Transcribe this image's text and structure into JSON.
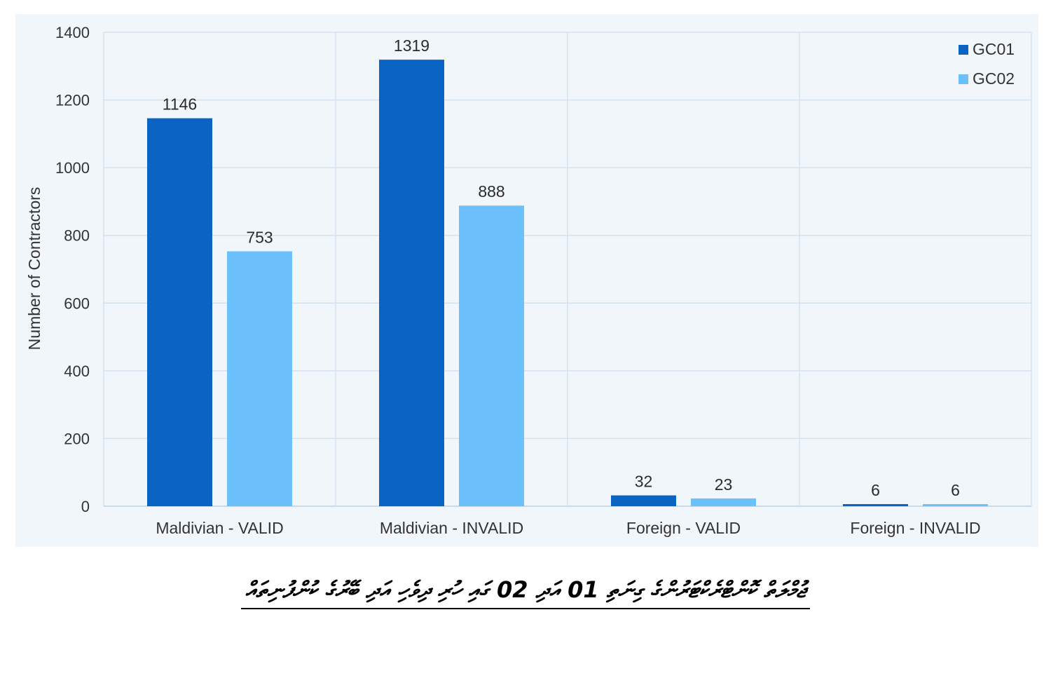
{
  "chart_data": {
    "type": "bar",
    "categories": [
      "Maldivian - VALID",
      "Maldivian - INVALID",
      "Foreign - VALID",
      "Foreign - INVALID"
    ],
    "series": [
      {
        "name": "GC01",
        "values": [
          1146,
          1319,
          32,
          6
        ],
        "color": "#0a64c4"
      },
      {
        "name": "GC02",
        "values": [
          753,
          888,
          23,
          6
        ],
        "color": "#6cc0fb"
      }
    ],
    "ylabel": "Number of Contractors",
    "ylim": [
      0,
      1400
    ],
    "yticks": [
      0,
      200,
      400,
      600,
      800,
      1000,
      1200,
      1400
    ],
    "legend_position": "top-right",
    "grid": true,
    "data_labels": true
  },
  "caption": "ޖުމްލަތް ކޮންޓްރެކްޓަރުންގެ ގިނަތި 01 އަދި 02 ގައި ހުރި ދިވެހި އަދި ބޭރުގެ ކުންފުނިތައް"
}
